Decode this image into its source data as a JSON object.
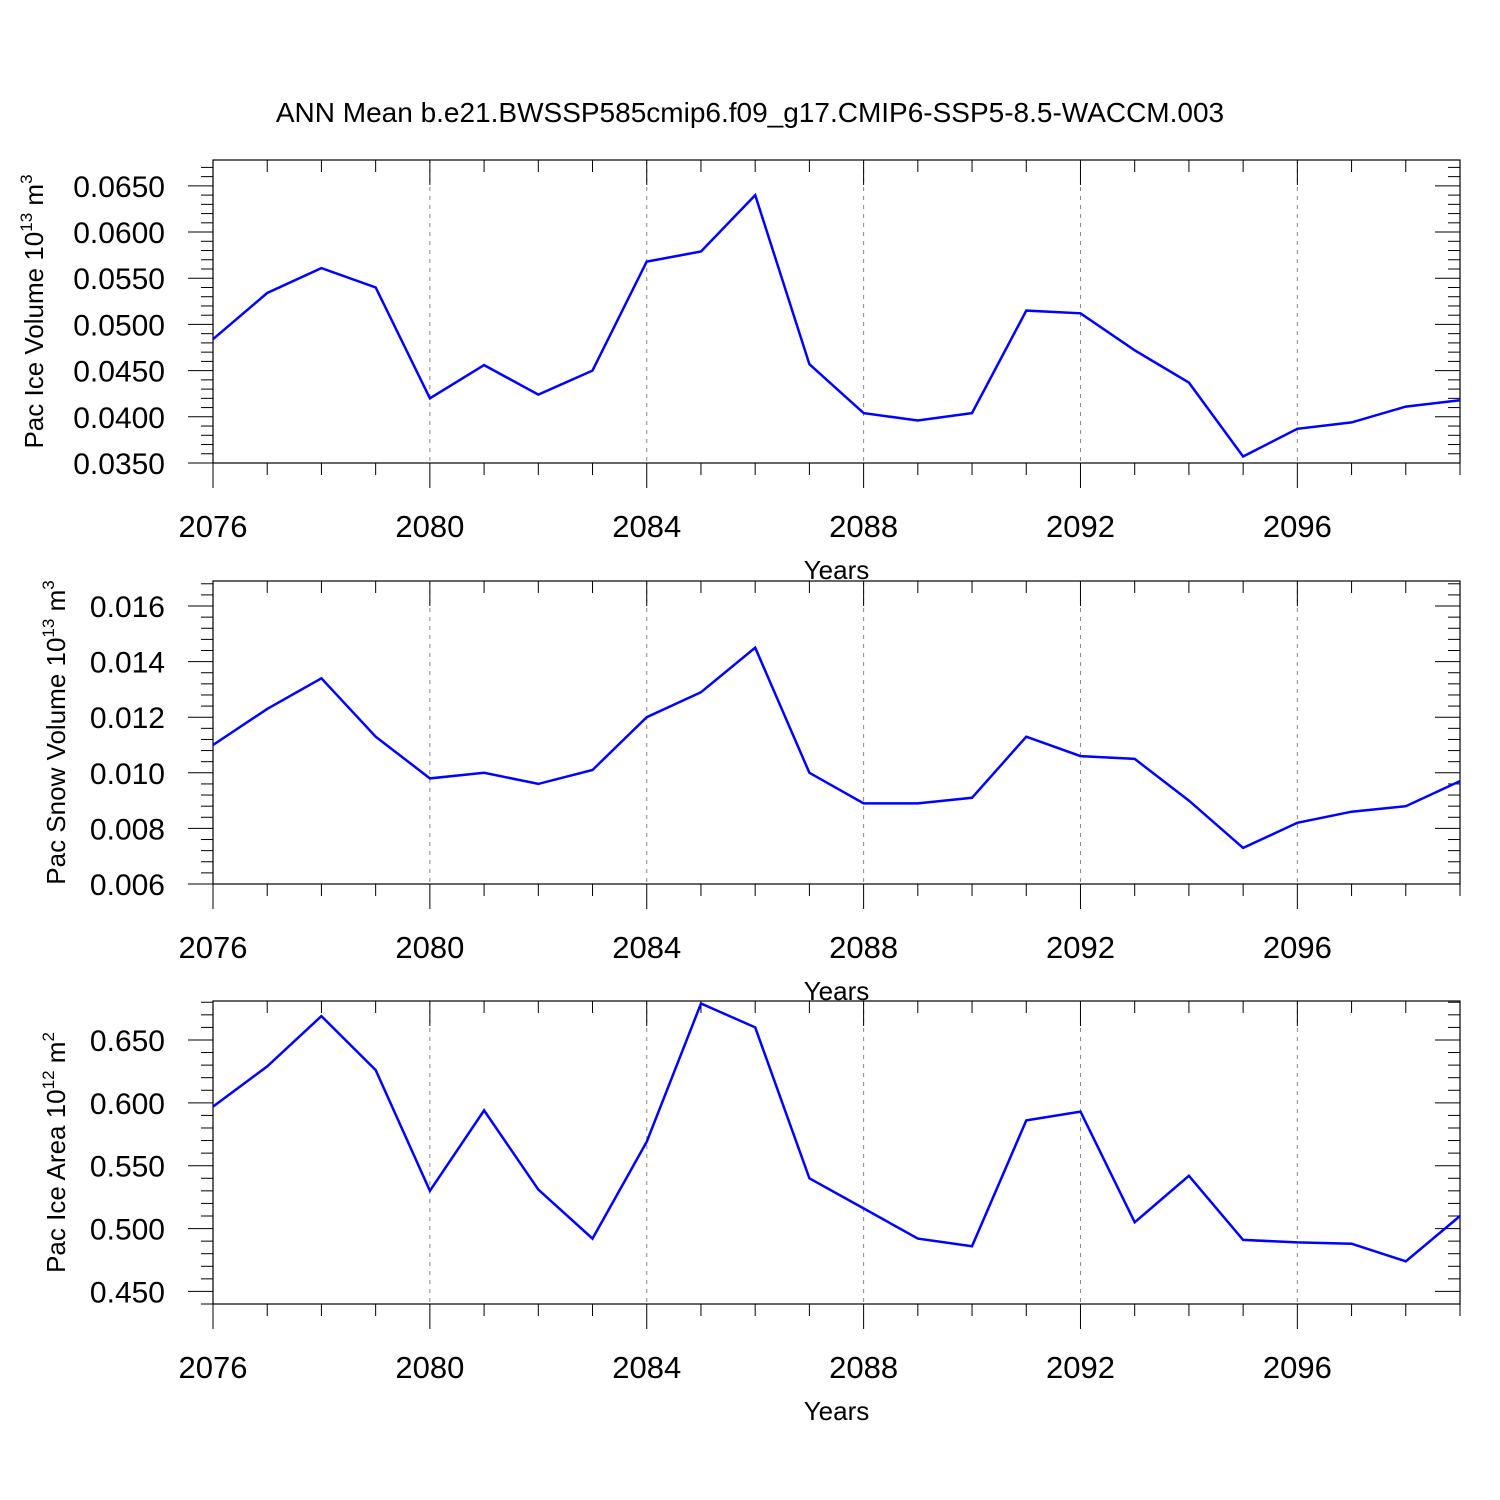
{
  "title": "ANN Mean b.e21.BWSSP585cmip6.f09_g17.CMIP6-SSP5-8.5-WACCM.003",
  "colors": {
    "line": "#0000ff",
    "axis": "#000000",
    "grid": "#888888"
  },
  "chart_data": [
    {
      "type": "line",
      "xlabel": "Years",
      "ylabel": {
        "prefix": "Pac Ice Volume 10",
        "exp1": "13",
        "mid": " m",
        "exp2": "3"
      },
      "xlim": [
        2076,
        2099
      ],
      "ylim": [
        0.035,
        0.0678
      ],
      "x_ticks": [
        "2076",
        "2080",
        "2084",
        "2088",
        "2092",
        "2096"
      ],
      "y_ticks": [
        "0.0350",
        "0.0400",
        "0.0450",
        "0.0500",
        "0.0550",
        "0.0600",
        "0.0650"
      ],
      "grid": "dashed vertical lines at labeled x ticks",
      "x": [
        2076,
        2077,
        2078,
        2079,
        2080,
        2081,
        2082,
        2083,
        2084,
        2085,
        2086,
        2087,
        2088,
        2089,
        2090,
        2091,
        2092,
        2093,
        2094,
        2095,
        2096,
        2097,
        2098,
        2099
      ],
      "values": [
        0.0484,
        0.0534,
        0.0561,
        0.054,
        0.042,
        0.0456,
        0.0424,
        0.045,
        0.0568,
        0.0579,
        0.064,
        0.0457,
        0.0404,
        0.0396,
        0.0404,
        0.0515,
        0.0512,
        0.0472,
        0.0437,
        0.0357,
        0.0387,
        0.0394,
        0.0411,
        0.0418
      ]
    },
    {
      "type": "line",
      "xlabel": "Years",
      "ylabel": {
        "prefix": "Pac Snow Volume 10",
        "exp1": "13",
        "mid": " m",
        "exp2": "3"
      },
      "xlim": [
        2076,
        2099
      ],
      "ylim": [
        0.006,
        0.0169
      ],
      "x_ticks": [
        "2076",
        "2080",
        "2084",
        "2088",
        "2092",
        "2096"
      ],
      "y_ticks": [
        "0.006",
        "0.008",
        "0.010",
        "0.012",
        "0.014",
        "0.016"
      ],
      "grid": "dashed vertical lines at labeled x ticks",
      "x": [
        2076,
        2077,
        2078,
        2079,
        2080,
        2081,
        2082,
        2083,
        2084,
        2085,
        2086,
        2087,
        2088,
        2089,
        2090,
        2091,
        2092,
        2093,
        2094,
        2095,
        2096,
        2097,
        2098,
        2099
      ],
      "values": [
        0.011,
        0.0123,
        0.0134,
        0.0113,
        0.0098,
        0.01,
        0.0096,
        0.0101,
        0.012,
        0.0129,
        0.0145,
        0.01,
        0.0089,
        0.0089,
        0.0091,
        0.0113,
        0.0106,
        0.0105,
        0.009,
        0.0073,
        0.0082,
        0.0086,
        0.0088,
        0.0097
      ]
    },
    {
      "type": "line",
      "xlabel": "Years",
      "ylabel": {
        "prefix": "Pac Ice Area 10",
        "exp1": "12",
        "mid": " m",
        "exp2": "2"
      },
      "xlim": [
        2076,
        2099
      ],
      "ylim": [
        0.44,
        0.681
      ],
      "x_ticks": [
        "2076",
        "2080",
        "2084",
        "2088",
        "2092",
        "2096"
      ],
      "y_ticks": [
        "0.450",
        "0.500",
        "0.550",
        "0.600",
        "0.650"
      ],
      "grid": "dashed vertical lines at labeled x ticks",
      "x": [
        2076,
        2077,
        2078,
        2079,
        2080,
        2081,
        2082,
        2083,
        2084,
        2085,
        2086,
        2087,
        2088,
        2089,
        2090,
        2091,
        2092,
        2093,
        2094,
        2095,
        2096,
        2097,
        2098,
        2099
      ],
      "values": [
        0.597,
        0.629,
        0.669,
        0.626,
        0.53,
        0.594,
        0.531,
        0.492,
        0.569,
        0.679,
        0.66,
        0.54,
        0.516,
        0.492,
        0.486,
        0.586,
        0.593,
        0.505,
        0.542,
        0.491,
        0.489,
        0.488,
        0.474,
        0.51
      ]
    }
  ]
}
